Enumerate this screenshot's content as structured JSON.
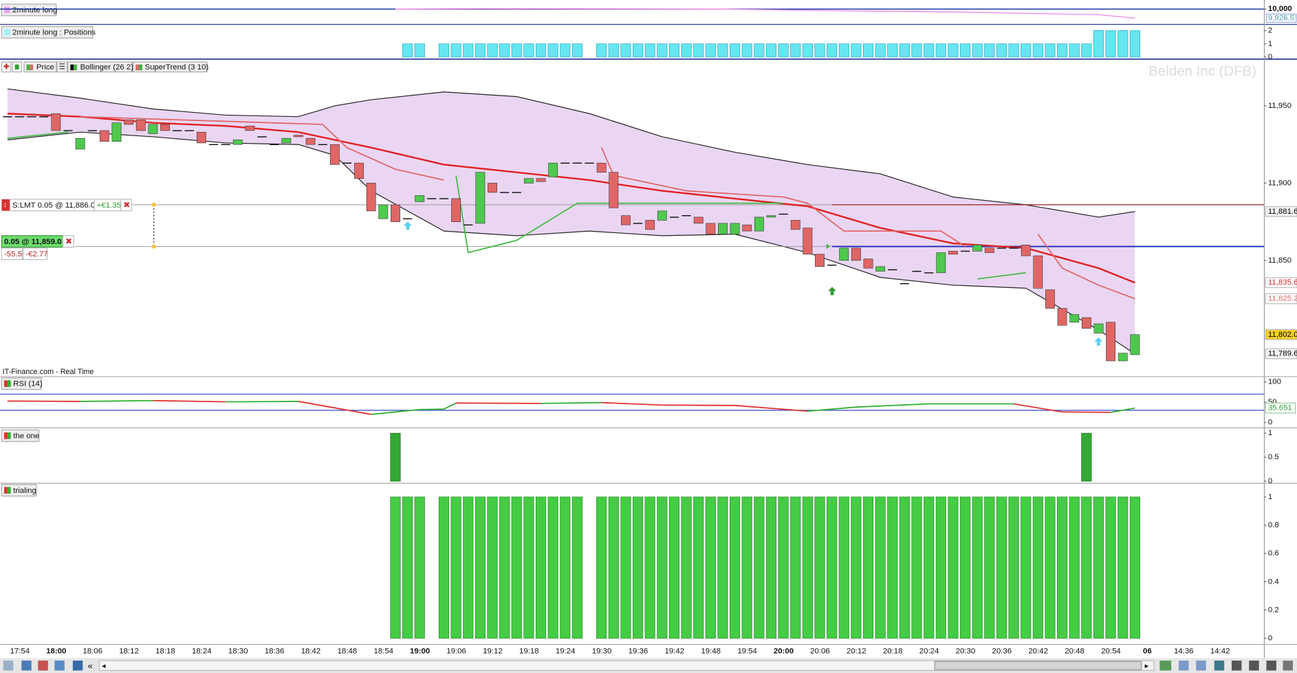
{
  "panels": {
    "equity": {
      "label": "2minute long",
      "ylim": [
        9879.7,
        10073.5
      ],
      "yticks": [
        {
          "value": 10000,
          "label": "10,000"
        }
      ],
      "tag": {
        "value": 9926.5,
        "label": "9,926.5"
      },
      "color": "#f08ee8",
      "x": [
        "18:56",
        "19:10",
        "19:30",
        "19:50",
        "20:04",
        "20:30",
        "20:46",
        "20:52",
        "20:58"
      ],
      "values": [
        10000,
        10003,
        10002,
        10000,
        9990,
        9975,
        9960,
        9955,
        9926.5
      ]
    },
    "positions": {
      "label": "2minute long : Positions",
      "ylim": [
        -0.125,
        2.44
      ],
      "yticks": [
        0,
        1,
        2
      ],
      "color": "#66e6f0",
      "values": [
        0,
        0,
        0,
        0,
        0,
        0,
        0,
        0,
        0,
        0,
        0,
        0,
        0,
        0,
        0,
        0,
        0,
        0,
        0,
        0,
        0,
        0,
        0,
        0,
        0,
        0,
        0,
        0,
        0,
        0,
        0,
        0,
        0,
        1,
        1,
        0,
        1,
        1,
        1,
        1,
        1,
        1,
        1,
        1,
        1,
        1,
        1,
        1,
        0,
        1,
        1,
        1,
        1,
        1,
        1,
        1,
        1,
        1,
        1,
        1,
        1,
        1,
        1,
        1,
        1,
        1,
        1,
        1,
        1,
        1,
        1,
        1,
        1,
        1,
        1,
        1,
        1,
        1,
        1,
        1,
        1,
        1,
        1,
        1,
        1,
        1,
        1,
        1,
        1,
        1,
        2,
        2,
        2,
        2
      ]
    },
    "price": {
      "legend": [
        "Price",
        "Bollinger (26 2)",
        "SuperTrend (3 10)"
      ],
      "watermark": "Belden Inc (DFB)",
      "source": "IT-Finance.com - Real Time",
      "ylim": [
        11775.1,
        11978.9
      ],
      "yticks": [
        {
          "value": 11850,
          "label": "11,850"
        },
        {
          "value": 11900,
          "label": "11,900"
        },
        {
          "value": 11950,
          "label": "11,950"
        }
      ],
      "tags": [
        {
          "value": 11881.6,
          "label": "11,881.6",
          "color": "#000000",
          "bg": "#f2f2f2"
        },
        {
          "value": 11835.6,
          "label": "11,835.6",
          "color": "#e02020",
          "bg": "#ffffff"
        },
        {
          "value": 11825.2,
          "label": "11,825.2",
          "color": "#e06666",
          "bg": "#ffffff"
        },
        {
          "value": 11802,
          "label": "11,802.0",
          "color": "#000000",
          "bg": "#f5d020"
        },
        {
          "value": 11789.6,
          "label": "11,789.6",
          "color": "#000000",
          "bg": "#f2f2f2"
        }
      ],
      "up_color": "#4ec94e",
      "down_color": "#e06666",
      "x": [
        "17:52",
        "17:54",
        "17:56",
        "17:58",
        "18:00",
        "18:02",
        "18:04",
        "18:06",
        "18:08",
        "18:10",
        "18:12",
        "18:14",
        "18:16",
        "18:18",
        "18:20",
        "18:22",
        "18:24",
        "18:26",
        "18:28",
        "18:30",
        "18:32",
        "18:34",
        "18:36",
        "18:38",
        "18:40",
        "18:42",
        "18:44",
        "18:46",
        "18:48",
        "18:50",
        "18:52",
        "18:54",
        "18:56",
        "18:58",
        "19:00",
        "19:02",
        "19:04",
        "19:06",
        "19:08",
        "19:10",
        "19:12",
        "19:14",
        "19:16",
        "19:18",
        "19:20",
        "19:22",
        "19:24",
        "19:26",
        "19:28",
        "19:30",
        "19:32",
        "19:34",
        "19:36",
        "19:38",
        "19:40",
        "19:42",
        "19:44",
        "19:46",
        "19:48",
        "19:50",
        "19:52",
        "19:54",
        "19:56",
        "19:58",
        "20:00",
        "20:02",
        "20:04",
        "20:06",
        "20:08",
        "20:10",
        "20:12",
        "20:14",
        "20:16",
        "20:18",
        "20:20",
        "20:22",
        "20:24",
        "20:26",
        "20:28",
        "20:30",
        "20:32",
        "20:34",
        "20:36",
        "20:38",
        "20:40",
        "20:42",
        "20:44",
        "20:46",
        "20:48",
        "20:50",
        "20:52",
        "20:54",
        "20:56",
        "20:58"
      ],
      "open": [
        11943,
        11943,
        11943,
        11943,
        11945,
        11934,
        11922,
        11934,
        11934,
        11927,
        11941,
        11941,
        11932,
        11938,
        11934,
        11934,
        11933,
        11925,
        11925,
        11925,
        11937,
        11930,
        11925,
        11926,
        11931,
        11929,
        11925,
        11925,
        11913,
        11913,
        11900,
        11877,
        11886,
        11877,
        11888,
        11890,
        11890,
        11890,
        11873,
        11874,
        11900,
        11894,
        11894,
        11900,
        11903,
        11904,
        11913,
        11913,
        11913,
        11913,
        11907,
        11879,
        11874,
        11876,
        11876,
        11878,
        11879,
        11878,
        11874,
        11867,
        11867,
        11873,
        11869,
        11878,
        11880,
        11876,
        11871,
        11854,
        11847,
        11850,
        11858,
        11851,
        11843,
        11844,
        11835,
        11843,
        11842,
        11842,
        11856,
        11856,
        11856,
        11858,
        11858,
        11858,
        11860,
        11853,
        11831,
        11819,
        11810,
        11813,
        11803,
        11810,
        11785,
        11789
      ],
      "close": [
        11943,
        11943,
        11943,
        11943,
        11934,
        11934,
        11929,
        11934,
        11927,
        11939,
        11938,
        11934,
        11938,
        11934,
        11934,
        11934,
        11926,
        11925,
        11925,
        11928,
        11934,
        11930,
        11925,
        11929,
        11930,
        11925,
        11925,
        11912,
        11913,
        11903,
        11882,
        11886,
        11875,
        11877,
        11892,
        11890,
        11890,
        11875,
        11873,
        11907,
        11894,
        11894,
        11894,
        11903,
        11901,
        11913,
        11913,
        11913,
        11913,
        11907,
        11884,
        11873,
        11874,
        11870,
        11882,
        11878,
        11879,
        11874,
        11867,
        11874,
        11874,
        11869,
        11878,
        11879,
        11880,
        11870,
        11854,
        11846,
        11847,
        11858,
        11850,
        11845,
        11846,
        11844,
        11835,
        11843,
        11842,
        11855,
        11854,
        11856,
        11860,
        11855,
        11858,
        11858,
        11853,
        11832,
        11819,
        11808,
        11815,
        11806,
        11809,
        11785,
        11790,
        11802
      ],
      "bollinger": {
        "fill": "#ead6f3",
        "band_color": "#222222",
        "mid_color": "#e02020",
        "x": [
          "17:52",
          "18:04",
          "18:16",
          "18:28",
          "18:40",
          "18:46",
          "18:52",
          "19:04",
          "19:16",
          "19:28",
          "19:40",
          "19:52",
          "20:04",
          "20:16",
          "20:28",
          "20:40",
          "20:52",
          "20:58"
        ],
        "upper": [
          11961,
          11955,
          11948,
          11944,
          11943,
          11950,
          11954,
          11959,
          11956,
          11945,
          11930,
          11920,
          11912,
          11906,
          11891,
          11886,
          11878,
          11881.6
        ],
        "middle": [
          11945,
          11943,
          11939,
          11937,
          11933,
          11928,
          11923,
          11912,
          11907,
          11902,
          11895,
          11890,
          11885,
          11871,
          11861,
          11858,
          11845,
          11835.6
        ],
        "lower": [
          11928,
          11933,
          11930,
          11926,
          11925,
          11918,
          11895,
          11869,
          11866,
          11869,
          11866,
          11867,
          11855,
          11839,
          11834,
          11832,
          11805,
          11789.6
        ]
      },
      "supertrend": [
        {
          "color": "#44bb44",
          "x": [
            "17:52",
            "18:02",
            "18:04",
            "19:06",
            "19:08",
            "19:16",
            "19:26",
            "19:36",
            "20:00",
            "20:02",
            "20:32",
            "20:40",
            "20:42"
          ],
          "values": [
            11929,
            11933,
            null,
            11905,
            11855,
            11863,
            11887,
            11887,
            11887,
            null,
            11838,
            11842,
            null
          ]
        },
        {
          "color": "#e06666",
          "x": [
            "18:04",
            "18:44",
            "18:48",
            "18:56",
            "19:04",
            "19:06",
            "19:30",
            "19:32",
            "19:44",
            "20:00",
            "20:04",
            "20:10",
            "20:26",
            "20:30",
            "20:32",
            "20:42",
            "20:46",
            "20:52",
            "20:58"
          ],
          "values": [
            11943,
            11938,
            11923,
            11909,
            11902,
            null,
            11923,
            11905,
            11895,
            11891,
            11887,
            11869,
            11869,
            11859,
            null,
            11867,
            11845,
            11834,
            11825.2
          ]
        }
      ]
    },
    "rsi": {
      "label": "RSI (14)",
      "ylim": [
        -12.2,
        112.2
      ],
      "yticks": [
        0,
        50,
        100
      ],
      "levels": [
        30,
        70
      ],
      "level_color": "#3344cc",
      "up_color": "#30b030",
      "down_color": "#e03030",
      "x": [
        "17:52",
        "18:04",
        "18:16",
        "18:28",
        "18:40",
        "18:52",
        "19:00",
        "19:04",
        "19:06",
        "19:20",
        "19:30",
        "19:40",
        "19:52",
        "20:04",
        "20:12",
        "20:24",
        "20:38",
        "20:46",
        "20:54",
        "20:58"
      ],
      "values": [
        53,
        52,
        54,
        51,
        52,
        20,
        32,
        33,
        48,
        47,
        49,
        43,
        42,
        28,
        38,
        46,
        46,
        26,
        25,
        35.651
      ]
    },
    "the_one": {
      "label": "the one",
      "ylim": [
        -0.034,
        1.103
      ],
      "yticks": [
        0,
        0.5,
        1
      ],
      "color": "#33aa33",
      "values": [
        0,
        0,
        0,
        0,
        0,
        0,
        0,
        0,
        0,
        0,
        0,
        0,
        0,
        0,
        0,
        0,
        0,
        0,
        0,
        0,
        0,
        0,
        0,
        0,
        0,
        0,
        0,
        0,
        0,
        0,
        0,
        0,
        1,
        0,
        0,
        0,
        0,
        0,
        0,
        0,
        0,
        0,
        0,
        0,
        0,
        0,
        0,
        0,
        0,
        0,
        0,
        0,
        0,
        0,
        0,
        0,
        0,
        0,
        0,
        0,
        0,
        0,
        0,
        0,
        0,
        0,
        0,
        0,
        0,
        0,
        0,
        0,
        0,
        0,
        0,
        0,
        0,
        0,
        0,
        0,
        0,
        0,
        0,
        0,
        0,
        0,
        0,
        0,
        0,
        1,
        0,
        0,
        0,
        0
      ]
    },
    "trialing": {
      "label": "trialing",
      "ylim": [
        -0.035,
        1.094
      ],
      "yticks": [
        0,
        0.2,
        0.4,
        0.6,
        0.8,
        1
      ],
      "color": "#44cc44",
      "values": [
        0,
        0,
        0,
        0,
        0,
        0,
        0,
        0,
        0,
        0,
        0,
        0,
        0,
        0,
        0,
        0,
        0,
        0,
        0,
        0,
        0,
        0,
        0,
        0,
        0,
        0,
        0,
        0,
        0,
        0,
        0,
        0,
        1,
        1,
        1,
        0,
        1,
        1,
        1,
        1,
        1,
        1,
        1,
        1,
        1,
        1,
        1,
        1,
        0,
        1,
        1,
        1,
        1,
        1,
        1,
        1,
        1,
        1,
        1,
        1,
        1,
        1,
        1,
        1,
        1,
        1,
        1,
        1,
        1,
        1,
        1,
        1,
        1,
        1,
        1,
        1,
        1,
        1,
        1,
        1,
        1,
        1,
        1,
        1,
        1,
        1,
        1,
        1,
        1,
        1,
        1,
        1,
        1,
        1
      ]
    }
  },
  "orders": {
    "order_label": "S:LMT 0.05 @ 11,886.0",
    "order_price": 11886,
    "order_pnl": "+€1.35",
    "position_label": "0.05 @ 11,859.0",
    "position_price": 11859,
    "points": "-55.5",
    "pnl": "-€2.77"
  },
  "time_axis": [
    "17:54",
    "18:00",
    "18:06",
    "18:12",
    "18:18",
    "18:24",
    "18:30",
    "18:36",
    "18:42",
    "18:48",
    "18:54",
    "19:00",
    "19:06",
    "19:12",
    "19:18",
    "19:24",
    "19:30",
    "19:36",
    "19:42",
    "19:48",
    "19:54",
    "20:00",
    "20:06",
    "20:12",
    "20:18",
    "20:24",
    "20:30",
    "20:36",
    "20:42",
    "20:48",
    "20:54",
    "06",
    "14:36",
    "14:42"
  ]
}
